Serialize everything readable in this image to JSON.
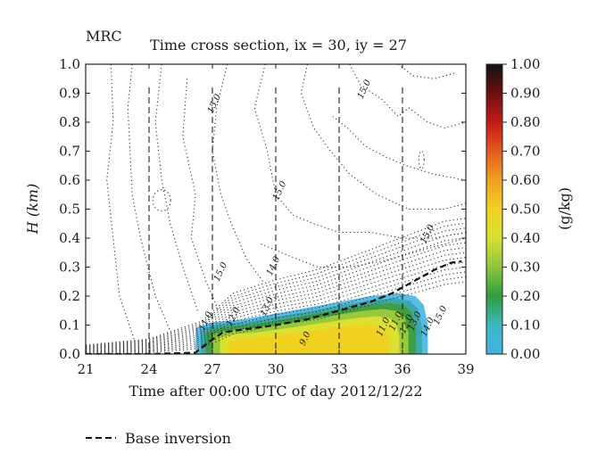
{
  "chart_data": {
    "type": "heatmap",
    "panel_label": "MRC",
    "title": "Time cross section, ix = 30, iy = 27",
    "xlabel": "Time after 00:00 UTC of day 2012/12/22",
    "ylabel": "H (km)",
    "xlim": [
      21,
      39
    ],
    "ylim": [
      0.0,
      1.0
    ],
    "x_ticks": [
      "21",
      "24",
      "27",
      "30",
      "33",
      "36",
      "39"
    ],
    "y_ticks": [
      "0.0",
      "0.1",
      "0.2",
      "0.3",
      "0.4",
      "0.5",
      "0.6",
      "0.7",
      "0.8",
      "0.9",
      "1.0"
    ],
    "colorbar": {
      "label": "(g/kg)",
      "range": [
        0.0,
        1.0
      ],
      "ticks": [
        "0.00",
        "0.10",
        "0.20",
        "0.30",
        "0.40",
        "0.50",
        "0.60",
        "0.70",
        "0.80",
        "0.90",
        "1.00"
      ],
      "colors": [
        "#3fb4e8",
        "#3db8c0",
        "#2e9e3c",
        "#8cc63f",
        "#d8e030",
        "#f2d21e",
        "#f0a020",
        "#e35a1c",
        "#c41a1a",
        "#6e1010",
        "#111111"
      ]
    },
    "vertical_dashed_lines_x": [
      24,
      27,
      30,
      33,
      36
    ],
    "contour_labels": [
      {
        "text": "15.0",
        "x": 27.2,
        "y": 0.86
      },
      {
        "text": "15.0",
        "x": 34.3,
        "y": 0.91
      },
      {
        "text": "15.0",
        "x": 30.3,
        "y": 0.56
      },
      {
        "text": "15.0",
        "x": 37.3,
        "y": 0.41
      },
      {
        "text": "15.0",
        "x": 27.5,
        "y": 0.28
      },
      {
        "text": "14.0",
        "x": 30.0,
        "y": 0.3
      },
      {
        "text": "13.0",
        "x": 29.7,
        "y": 0.16
      },
      {
        "text": "12.0",
        "x": 28.1,
        "y": 0.125
      },
      {
        "text": "11.0",
        "x": 26.8,
        "y": 0.11
      },
      {
        "text": "9.0",
        "x": 31.5,
        "y": 0.05
      },
      {
        "text": "11.0",
        "x": 35.2,
        "y": 0.09
      },
      {
        "text": "11.0",
        "x": 35.8,
        "y": 0.11
      },
      {
        "text": "12.0",
        "x": 36.3,
        "y": 0.1
      },
      {
        "text": "13.0",
        "x": 36.7,
        "y": 0.11
      },
      {
        "text": "14.0",
        "x": 37.3,
        "y": 0.09
      },
      {
        "text": "15.0",
        "x": 37.9,
        "y": 0.13
      }
    ],
    "base_inversion": {
      "legend_label": "Base inversion",
      "x": [
        21.0,
        24.0,
        26.2,
        26.8,
        27.5,
        28.5,
        30.0,
        31.5,
        33.0,
        34.5,
        35.5,
        36.5,
        37.5,
        38.3,
        38.8
      ],
      "y": [
        0.0,
        0.0,
        0.005,
        0.04,
        0.075,
        0.085,
        0.1,
        0.12,
        0.15,
        0.18,
        0.21,
        0.25,
        0.29,
        0.315,
        0.32
      ]
    },
    "cloud_region": {
      "x_start": 26.2,
      "x_end": 37.2,
      "top": {
        "x": [
          26.2,
          27.0,
          28.5,
          30.0,
          31.5,
          33.0,
          34.5,
          35.8,
          36.6,
          37.0,
          37.2
        ],
        "y": [
          0.09,
          0.11,
          0.12,
          0.14,
          0.16,
          0.18,
          0.2,
          0.21,
          0.2,
          0.17,
          0.1
        ]
      },
      "max_value_approx": 0.48
    }
  },
  "legend": {
    "base_inversion_label": "Base inversion"
  }
}
